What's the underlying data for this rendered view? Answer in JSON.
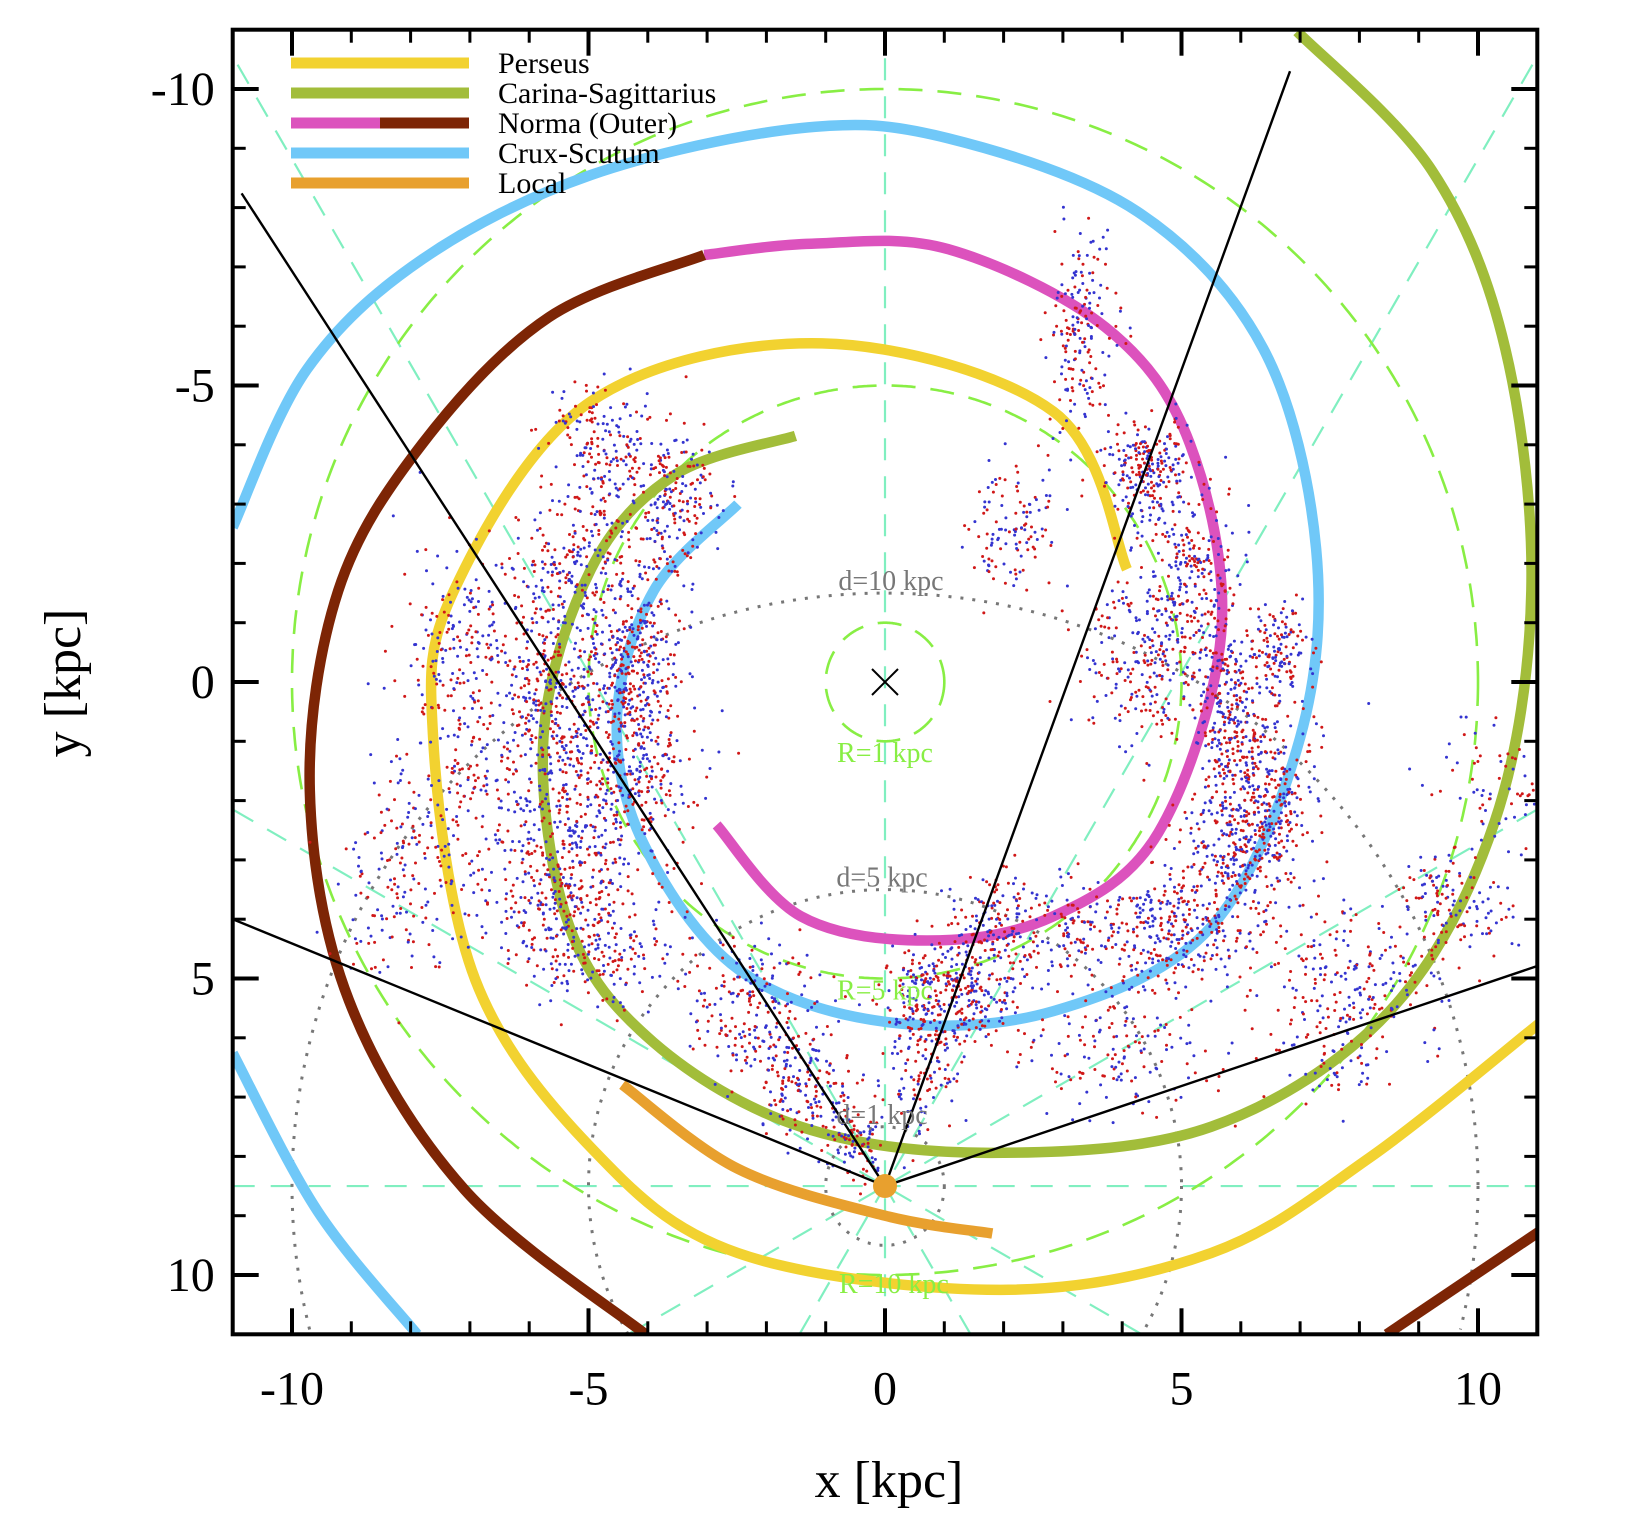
{
  "chart_data": {
    "type": "line",
    "title": "",
    "xlabel": "x [kpc]",
    "ylabel": "y [kpc]",
    "xlim": [
      -11,
      11
    ],
    "ylim": [
      -11,
      11
    ],
    "y_inverted": true,
    "grid": false,
    "xticks": [
      -10,
      -5,
      0,
      5,
      10
    ],
    "yticks": [
      -10,
      -5,
      0,
      5,
      10
    ],
    "xtick_labels": [
      "-10",
      "-5",
      "0",
      "5",
      "10"
    ],
    "ytick_labels": [
      "-10",
      "-5",
      "0",
      "5",
      "10"
    ],
    "minor_tick_step": 1,
    "legend": {
      "position": "top-left",
      "entries": [
        {
          "label": "Perseus",
          "colors": [
            "#f2d230"
          ]
        },
        {
          "label": "Carina-Sagittarius",
          "colors": [
            "#a2bd3a"
          ]
        },
        {
          "label": "Norma (Outer)",
          "colors": [
            "#dc52bd",
            "#7d2505"
          ]
        },
        {
          "label": "Crux-Scutum",
          "colors": [
            "#70c8f8"
          ]
        },
        {
          "label": "Local",
          "colors": [
            "#e8a02e"
          ]
        }
      ]
    },
    "series": [
      {
        "name": "Crux-Scutum",
        "color": "#70c8f8",
        "segments": [
          [
            [
              -2.48,
              -3.0
            ],
            [
              -3.9,
              -1.54
            ],
            [
              -4.52,
              0.59
            ],
            [
              -4.08,
              2.71
            ],
            [
              -2.48,
              4.84
            ],
            [
              0,
              5.73
            ],
            [
              2.84,
              5.55
            ],
            [
              5.5,
              4.13
            ],
            [
              7.0,
              0.94
            ],
            [
              7.27,
              -2.25
            ],
            [
              6.38,
              -5.62
            ],
            [
              4.26,
              -7.93
            ],
            [
              1.06,
              -9.17
            ],
            [
              -1.42,
              -9.34
            ],
            [
              -4.96,
              -8.55
            ],
            [
              -7.8,
              -7.13
            ],
            [
              -9.75,
              -5.27
            ],
            [
              -11.0,
              -2.61
            ]
          ],
          [
            [
              -11.0,
              6.26
            ],
            [
              -9.57,
              8.92
            ],
            [
              -7.89,
              11.0
            ]
          ]
        ]
      },
      {
        "name": "Norma",
        "color": "#dc52bd",
        "segments": [
          [
            [
              -2.84,
              2.41
            ],
            [
              -1.42,
              3.95
            ],
            [
              0.71,
              4.36
            ],
            [
              2.84,
              3.95
            ],
            [
              4.61,
              2.54
            ],
            [
              5.67,
              -0.83
            ],
            [
              5.14,
              -4.02
            ],
            [
              3.72,
              -5.98
            ],
            [
              1.06,
              -7.3
            ],
            [
              -1.24,
              -7.39
            ],
            [
              -3.05,
              -7.2
            ]
          ]
        ]
      },
      {
        "name": "Outer",
        "color": "#7d2505",
        "segments": [
          [
            [
              -3.05,
              -7.2
            ],
            [
              -5.67,
              -6.15
            ],
            [
              -7.8,
              -4.02
            ],
            [
              -9.22,
              -1.54
            ],
            [
              -9.7,
              1.83
            ],
            [
              -9.04,
              5.37
            ],
            [
              -7.09,
              8.56
            ],
            [
              -4.04,
              11.0
            ]
          ],
          [
            [
              8.46,
              11.0
            ],
            [
              11.03,
              9.27
            ]
          ]
        ]
      },
      {
        "name": "Perseus",
        "color": "#f2d230",
        "segments": [
          [
            [
              4.08,
              -1.9
            ],
            [
              2.84,
              -4.56
            ],
            [
              -1.06,
              -5.71
            ],
            [
              -4.96,
              -4.73
            ],
            [
              -7.27,
              -1.54
            ],
            [
              -7.62,
              0.94
            ],
            [
              -6.91,
              5.02
            ],
            [
              -4.96,
              7.85
            ],
            [
              -2.48,
              9.63
            ],
            [
              1.95,
              10.25
            ],
            [
              5.5,
              9.63
            ],
            [
              8.16,
              8.03
            ],
            [
              11.03,
              5.76
            ]
          ]
        ]
      },
      {
        "name": "Carina-Sagittarius",
        "color": "#a2bd3a",
        "segments": [
          [
            [
              -1.51,
              -4.15
            ],
            [
              -3.55,
              -3.49
            ],
            [
              -4.96,
              -1.9
            ],
            [
              -5.76,
              0.94
            ],
            [
              -5.32,
              4.13
            ],
            [
              -3.9,
              6.08
            ],
            [
              -1.42,
              7.5
            ],
            [
              1.77,
              7.94
            ],
            [
              5.5,
              7.5
            ],
            [
              8.51,
              5.55
            ],
            [
              10.28,
              2.36
            ],
            [
              10.9,
              -1.54
            ],
            [
              10.46,
              -5.62
            ],
            [
              9.22,
              -8.63
            ],
            [
              6.95,
              -10.97
            ]
          ]
        ]
      },
      {
        "name": "Local",
        "color": "#e8a02e",
        "segments": [
          [
            [
              -4.43,
              6.79
            ],
            [
              -2.48,
              8.21
            ],
            [
              0,
              9.0
            ],
            [
              1.81,
              9.3
            ]
          ]
        ]
      }
    ],
    "reference": {
      "galactic_center": [
        0,
        0
      ],
      "sun": [
        0,
        8.5
      ],
      "galactocentric_circles_kpc": [
        1,
        5,
        10
      ],
      "heliocentric_circles_kpc": [
        1,
        5,
        10
      ],
      "longitude_lines_deg": [
        0,
        30,
        60,
        90,
        120,
        150
      ],
      "sightline_endpoints": [
        [
          -10.85,
          -8.24
        ],
        [
          6.83,
          -10.3
        ],
        [
          -11.0,
          4.0
        ],
        [
          11.03,
          4.79
        ]
      ]
    },
    "annotations": [
      {
        "text": "d=10 kpc",
        "x": 0.1,
        "y": -1.55,
        "kind": "heliocentric"
      },
      {
        "text": "d=5 kpc",
        "x": -0.05,
        "y": 3.45,
        "kind": "heliocentric"
      },
      {
        "text": "d=1 kpc",
        "x": -0.05,
        "y": 7.45,
        "kind": "heliocentric"
      },
      {
        "text": "R=1 kpc",
        "x": 0,
        "y": 1.35,
        "kind": "galactocentric"
      },
      {
        "text": "R=5 kpc",
        "x": 0,
        "y": 5.35,
        "kind": "galactocentric"
      },
      {
        "text": "R=10 kpc",
        "x": 0.15,
        "y": 10.3,
        "kind": "galactocentric"
      }
    ],
    "scatter_colors": [
      "#d01818",
      "#3434d0"
    ],
    "scatter_clusters": [
      {
        "x": -4.8,
        "y": -4.0,
        "sx": 0.5,
        "sy": 0.6,
        "n": 180
      },
      {
        "x": -3.6,
        "y": -3.0,
        "sx": 0.4,
        "sy": 0.6,
        "n": 200
      },
      {
        "x": -5.2,
        "y": -2.0,
        "sx": 0.6,
        "sy": 0.7,
        "n": 240
      },
      {
        "x": -4.3,
        "y": -0.3,
        "sx": 0.45,
        "sy": 0.8,
        "n": 360
      },
      {
        "x": -5.6,
        "y": 0.5,
        "sx": 0.4,
        "sy": 0.9,
        "n": 260
      },
      {
        "x": -4.2,
        "y": 1.5,
        "sx": 0.5,
        "sy": 0.7,
        "n": 280
      },
      {
        "x": -5.5,
        "y": 3.0,
        "sx": 0.6,
        "sy": 0.8,
        "n": 320
      },
      {
        "x": -5.0,
        "y": 4.3,
        "sx": 0.7,
        "sy": 0.6,
        "n": 260
      },
      {
        "x": -6.8,
        "y": 0.5,
        "sx": 0.6,
        "sy": 1.1,
        "n": 180
      },
      {
        "x": -7.5,
        "y": 2.5,
        "sx": 0.6,
        "sy": 0.9,
        "n": 160
      },
      {
        "x": -7.2,
        "y": -0.8,
        "sx": 0.6,
        "sy": 0.8,
        "n": 120
      },
      {
        "x": -8.3,
        "y": 3.5,
        "sx": 0.5,
        "sy": 0.8,
        "n": 90
      },
      {
        "x": -2.2,
        "y": 5.5,
        "sx": 0.6,
        "sy": 0.6,
        "n": 220
      },
      {
        "x": -1.3,
        "y": 6.8,
        "sx": 0.4,
        "sy": 0.5,
        "n": 150
      },
      {
        "x": -0.5,
        "y": 7.8,
        "sx": 0.25,
        "sy": 0.35,
        "n": 90
      },
      {
        "x": 0.6,
        "y": 6.0,
        "sx": 0.3,
        "sy": 0.8,
        "n": 200
      },
      {
        "x": 1.3,
        "y": 5.2,
        "sx": 0.5,
        "sy": 0.5,
        "n": 280
      },
      {
        "x": 2.0,
        "y": 4.0,
        "sx": 0.5,
        "sy": 0.4,
        "n": 120
      },
      {
        "x": 3.3,
        "y": -6.0,
        "sx": 0.3,
        "sy": 0.8,
        "n": 180
      },
      {
        "x": 4.4,
        "y": -3.6,
        "sx": 0.35,
        "sy": 0.45,
        "n": 240
      },
      {
        "x": 2.2,
        "y": -2.6,
        "sx": 0.4,
        "sy": 0.6,
        "n": 120
      },
      {
        "x": 5.2,
        "y": -1.8,
        "sx": 0.35,
        "sy": 0.7,
        "n": 200
      },
      {
        "x": 4.4,
        "y": -0.5,
        "sx": 0.5,
        "sy": 0.8,
        "n": 240
      },
      {
        "x": 5.8,
        "y": 0.3,
        "sx": 0.4,
        "sy": 0.8,
        "n": 260
      },
      {
        "x": 6.7,
        "y": -0.5,
        "sx": 0.25,
        "sy": 0.4,
        "n": 120
      },
      {
        "x": 6.4,
        "y": 1.6,
        "sx": 0.45,
        "sy": 0.7,
        "n": 260
      },
      {
        "x": 6.0,
        "y": 2.8,
        "sx": 0.5,
        "sy": 0.6,
        "n": 320
      },
      {
        "x": 5.0,
        "y": 4.2,
        "sx": 0.7,
        "sy": 0.5,
        "n": 300
      },
      {
        "x": 3.3,
        "y": 4.3,
        "sx": 0.6,
        "sy": 0.5,
        "n": 140
      },
      {
        "x": 8.0,
        "y": 5.0,
        "sx": 0.7,
        "sy": 0.5,
        "n": 180
      },
      {
        "x": 9.6,
        "y": 3.8,
        "sx": 0.5,
        "sy": 0.5,
        "n": 130
      },
      {
        "x": 10.3,
        "y": 1.8,
        "sx": 0.5,
        "sy": 0.6,
        "n": 70
      },
      {
        "x": 4.0,
        "y": 6.3,
        "sx": 0.8,
        "sy": 0.5,
        "n": 140
      },
      {
        "x": 7.5,
        "y": 6.3,
        "sx": 0.7,
        "sy": 0.4,
        "n": 80
      }
    ]
  }
}
